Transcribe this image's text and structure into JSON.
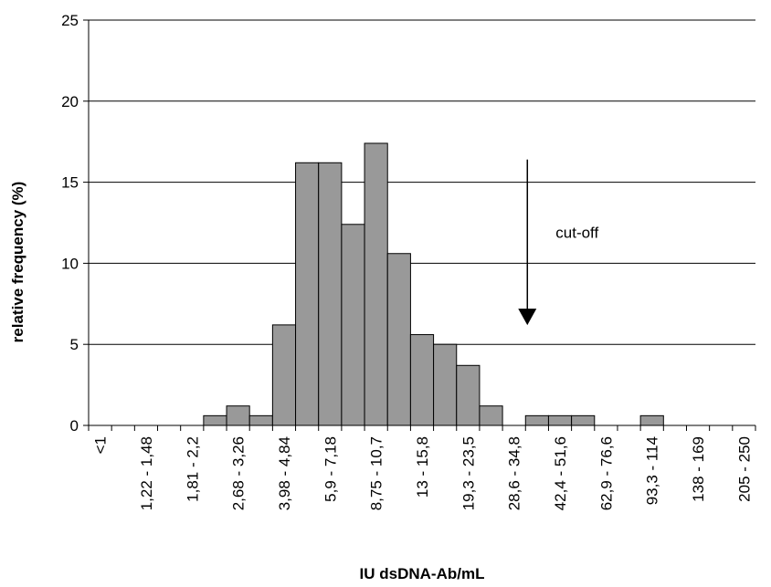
{
  "chart_data": {
    "type": "bar",
    "xlabel": "IU dsDNA-Ab/mL",
    "ylabel": "relative frequency (%)",
    "ylim": [
      0,
      25
    ],
    "yticks": [
      0,
      5,
      10,
      15,
      20,
      25
    ],
    "grid": "horizontal",
    "categories": [
      "<1",
      "",
      "1,22 - 1,48",
      "",
      "1,81 - 2,2",
      "",
      "2,68 - 3,26",
      "",
      "3,98 - 4,84",
      "",
      "5,9 - 7,18",
      "",
      "8,75 - 10,7",
      "",
      "13 - 15,8",
      "",
      "19,3 - 23,5",
      "",
      "28,6 - 34,8",
      "",
      "42,4 - 51,6",
      "",
      "62,9 - 76,6",
      "",
      "93,3 - 114",
      "",
      "138 - 169",
      "",
      "205 - 250"
    ],
    "values": [
      0,
      0,
      0,
      0,
      0,
      0.6,
      1.2,
      0.6,
      6.2,
      16.2,
      16.2,
      12.4,
      17.4,
      10.6,
      5.6,
      5.0,
      3.7,
      1.2,
      0,
      0.6,
      0.6,
      0.6,
      0,
      0,
      0.6,
      0,
      0,
      0,
      0
    ],
    "annotations": [
      {
        "text": "cut-off",
        "type": "arrow",
        "x_category_index": 19,
        "from_y": 16.4,
        "to_y": 6.3
      }
    ]
  }
}
